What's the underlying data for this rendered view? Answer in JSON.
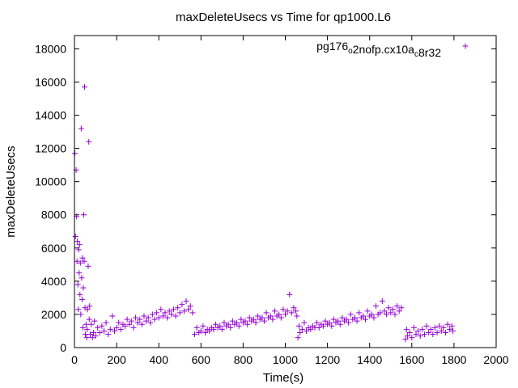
{
  "chart_data": {
    "type": "scatter",
    "title": "maxDeleteUsecs vs Time for qp1000.L6",
    "xlabel": "Time(s)",
    "ylabel": "maxDeleteUsecs",
    "xlim": [
      0,
      2000
    ],
    "ylim": [
      0,
      18800
    ],
    "xticks": [
      0,
      200,
      400,
      600,
      800,
      1000,
      1200,
      1400,
      1600,
      1800,
      2000
    ],
    "yticks": [
      0,
      2000,
      4000,
      6000,
      8000,
      10000,
      12000,
      14000,
      16000,
      18000
    ],
    "grid": false,
    "legend_position": "top-right",
    "marker": "plus",
    "series": [
      {
        "name": "pg176_o2nofp.cx10a_c8r32",
        "color": "#9400d3",
        "points": [
          [
            2,
            11700
          ],
          [
            5,
            6700
          ],
          [
            8,
            10700
          ],
          [
            10,
            7900
          ],
          [
            12,
            5200
          ],
          [
            14,
            6400
          ],
          [
            16,
            3800
          ],
          [
            18,
            2300
          ],
          [
            20,
            5900
          ],
          [
            22,
            4500
          ],
          [
            24,
            6200
          ],
          [
            26,
            3200
          ],
          [
            28,
            5100
          ],
          [
            30,
            2000
          ],
          [
            32,
            13200
          ],
          [
            34,
            4200
          ],
          [
            36,
            2900
          ],
          [
            38,
            5400
          ],
          [
            40,
            1200
          ],
          [
            42,
            3600
          ],
          [
            44,
            8000
          ],
          [
            46,
            5200
          ],
          [
            48,
            15700
          ],
          [
            50,
            2400
          ],
          [
            52,
            800
          ],
          [
            55,
            1400
          ],
          [
            58,
            600
          ],
          [
            60,
            1100
          ],
          [
            62,
            2300
          ],
          [
            65,
            4900
          ],
          [
            68,
            12400
          ],
          [
            70,
            1700
          ],
          [
            72,
            2500
          ],
          [
            75,
            800
          ],
          [
            80,
            1400
          ],
          [
            85,
            600
          ],
          [
            90,
            900
          ],
          [
            95,
            1600
          ],
          [
            100,
            700
          ],
          [
            110,
            1200
          ],
          [
            120,
            900
          ],
          [
            130,
            1300
          ],
          [
            140,
            1000
          ],
          [
            150,
            1500
          ],
          [
            160,
            800
          ],
          [
            170,
            1100
          ],
          [
            180,
            1900
          ],
          [
            190,
            1000
          ],
          [
            200,
            1200
          ],
          [
            210,
            1500
          ],
          [
            220,
            1100
          ],
          [
            230,
            1400
          ],
          [
            240,
            1300
          ],
          [
            250,
            1700
          ],
          [
            260,
            1400
          ],
          [
            270,
            1600
          ],
          [
            280,
            1200
          ],
          [
            290,
            1800
          ],
          [
            300,
            1500
          ],
          [
            310,
            1700
          ],
          [
            320,
            1400
          ],
          [
            330,
            1900
          ],
          [
            340,
            1600
          ],
          [
            350,
            1800
          ],
          [
            360,
            1500
          ],
          [
            370,
            2000
          ],
          [
            380,
            1700
          ],
          [
            390,
            2100
          ],
          [
            400,
            1800
          ],
          [
            410,
            2300
          ],
          [
            420,
            1900
          ],
          [
            430,
            2100
          ],
          [
            440,
            1800
          ],
          [
            450,
            2200
          ],
          [
            460,
            2000
          ],
          [
            470,
            2300
          ],
          [
            480,
            1900
          ],
          [
            490,
            2400
          ],
          [
            500,
            2100
          ],
          [
            510,
            2600
          ],
          [
            520,
            2200
          ],
          [
            530,
            2800
          ],
          [
            540,
            2300
          ],
          [
            550,
            2500
          ],
          [
            560,
            2100
          ],
          [
            570,
            800
          ],
          [
            580,
            1200
          ],
          [
            590,
            900
          ],
          [
            600,
            1000
          ],
          [
            610,
            1300
          ],
          [
            620,
            900
          ],
          [
            630,
            1100
          ],
          [
            640,
            1000
          ],
          [
            650,
            1200
          ],
          [
            660,
            1100
          ],
          [
            670,
            1400
          ],
          [
            680,
            1200
          ],
          [
            690,
            1300
          ],
          [
            700,
            1100
          ],
          [
            710,
            1500
          ],
          [
            720,
            1300
          ],
          [
            730,
            1400
          ],
          [
            740,
            1200
          ],
          [
            750,
            1600
          ],
          [
            760,
            1400
          ],
          [
            770,
            1500
          ],
          [
            780,
            1300
          ],
          [
            790,
            1700
          ],
          [
            800,
            1500
          ],
          [
            810,
            1600
          ],
          [
            820,
            1400
          ],
          [
            830,
            1800
          ],
          [
            840,
            1600
          ],
          [
            850,
            1700
          ],
          [
            860,
            1500
          ],
          [
            870,
            1900
          ],
          [
            880,
            1700
          ],
          [
            890,
            1800
          ],
          [
            900,
            1600
          ],
          [
            910,
            2100
          ],
          [
            920,
            1800
          ],
          [
            930,
            1900
          ],
          [
            940,
            1700
          ],
          [
            950,
            2200
          ],
          [
            960,
            1900
          ],
          [
            970,
            2000
          ],
          [
            980,
            1800
          ],
          [
            990,
            2300
          ],
          [
            1000,
            2000
          ],
          [
            1010,
            2200
          ],
          [
            1020,
            3200
          ],
          [
            1030,
            2100
          ],
          [
            1040,
            2400
          ],
          [
            1050,
            2200
          ],
          [
            1055,
            1900
          ],
          [
            1060,
            600
          ],
          [
            1065,
            1300
          ],
          [
            1070,
            900
          ],
          [
            1080,
            1100
          ],
          [
            1090,
            1500
          ],
          [
            1100,
            1000
          ],
          [
            1110,
            1200
          ],
          [
            1120,
            1100
          ],
          [
            1130,
            1300
          ],
          [
            1140,
            1200
          ],
          [
            1150,
            1500
          ],
          [
            1160,
            1200
          ],
          [
            1170,
            1400
          ],
          [
            1180,
            1300
          ],
          [
            1190,
            1600
          ],
          [
            1200,
            1400
          ],
          [
            1210,
            1500
          ],
          [
            1220,
            1300
          ],
          [
            1230,
            1700
          ],
          [
            1240,
            1500
          ],
          [
            1250,
            1600
          ],
          [
            1260,
            1400
          ],
          [
            1270,
            1800
          ],
          [
            1280,
            1600
          ],
          [
            1290,
            1700
          ],
          [
            1300,
            1500
          ],
          [
            1310,
            2000
          ],
          [
            1320,
            1700
          ],
          [
            1330,
            1800
          ],
          [
            1340,
            1600
          ],
          [
            1350,
            2100
          ],
          [
            1360,
            1800
          ],
          [
            1370,
            1900
          ],
          [
            1380,
            1700
          ],
          [
            1390,
            2200
          ],
          [
            1400,
            1900
          ],
          [
            1410,
            2000
          ],
          [
            1420,
            1800
          ],
          [
            1430,
            2500
          ],
          [
            1440,
            2000
          ],
          [
            1450,
            2100
          ],
          [
            1460,
            2800
          ],
          [
            1470,
            2200
          ],
          [
            1480,
            2000
          ],
          [
            1490,
            2400
          ],
          [
            1500,
            2100
          ],
          [
            1510,
            2300
          ],
          [
            1520,
            2000
          ],
          [
            1530,
            2500
          ],
          [
            1540,
            2200
          ],
          [
            1550,
            2400
          ],
          [
            1570,
            500
          ],
          [
            1575,
            1100
          ],
          [
            1580,
            700
          ],
          [
            1590,
            900
          ],
          [
            1600,
            600
          ],
          [
            1610,
            1200
          ],
          [
            1620,
            800
          ],
          [
            1630,
            1000
          ],
          [
            1640,
            700
          ],
          [
            1650,
            1100
          ],
          [
            1660,
            800
          ],
          [
            1670,
            1300
          ],
          [
            1680,
            900
          ],
          [
            1690,
            1100
          ],
          [
            1700,
            800
          ],
          [
            1710,
            1200
          ],
          [
            1720,
            900
          ],
          [
            1730,
            1300
          ],
          [
            1740,
            1000
          ],
          [
            1750,
            1200
          ],
          [
            1760,
            900
          ],
          [
            1770,
            1400
          ],
          [
            1780,
            1100
          ],
          [
            1790,
            1300
          ],
          [
            1795,
            1000
          ]
        ]
      }
    ]
  }
}
